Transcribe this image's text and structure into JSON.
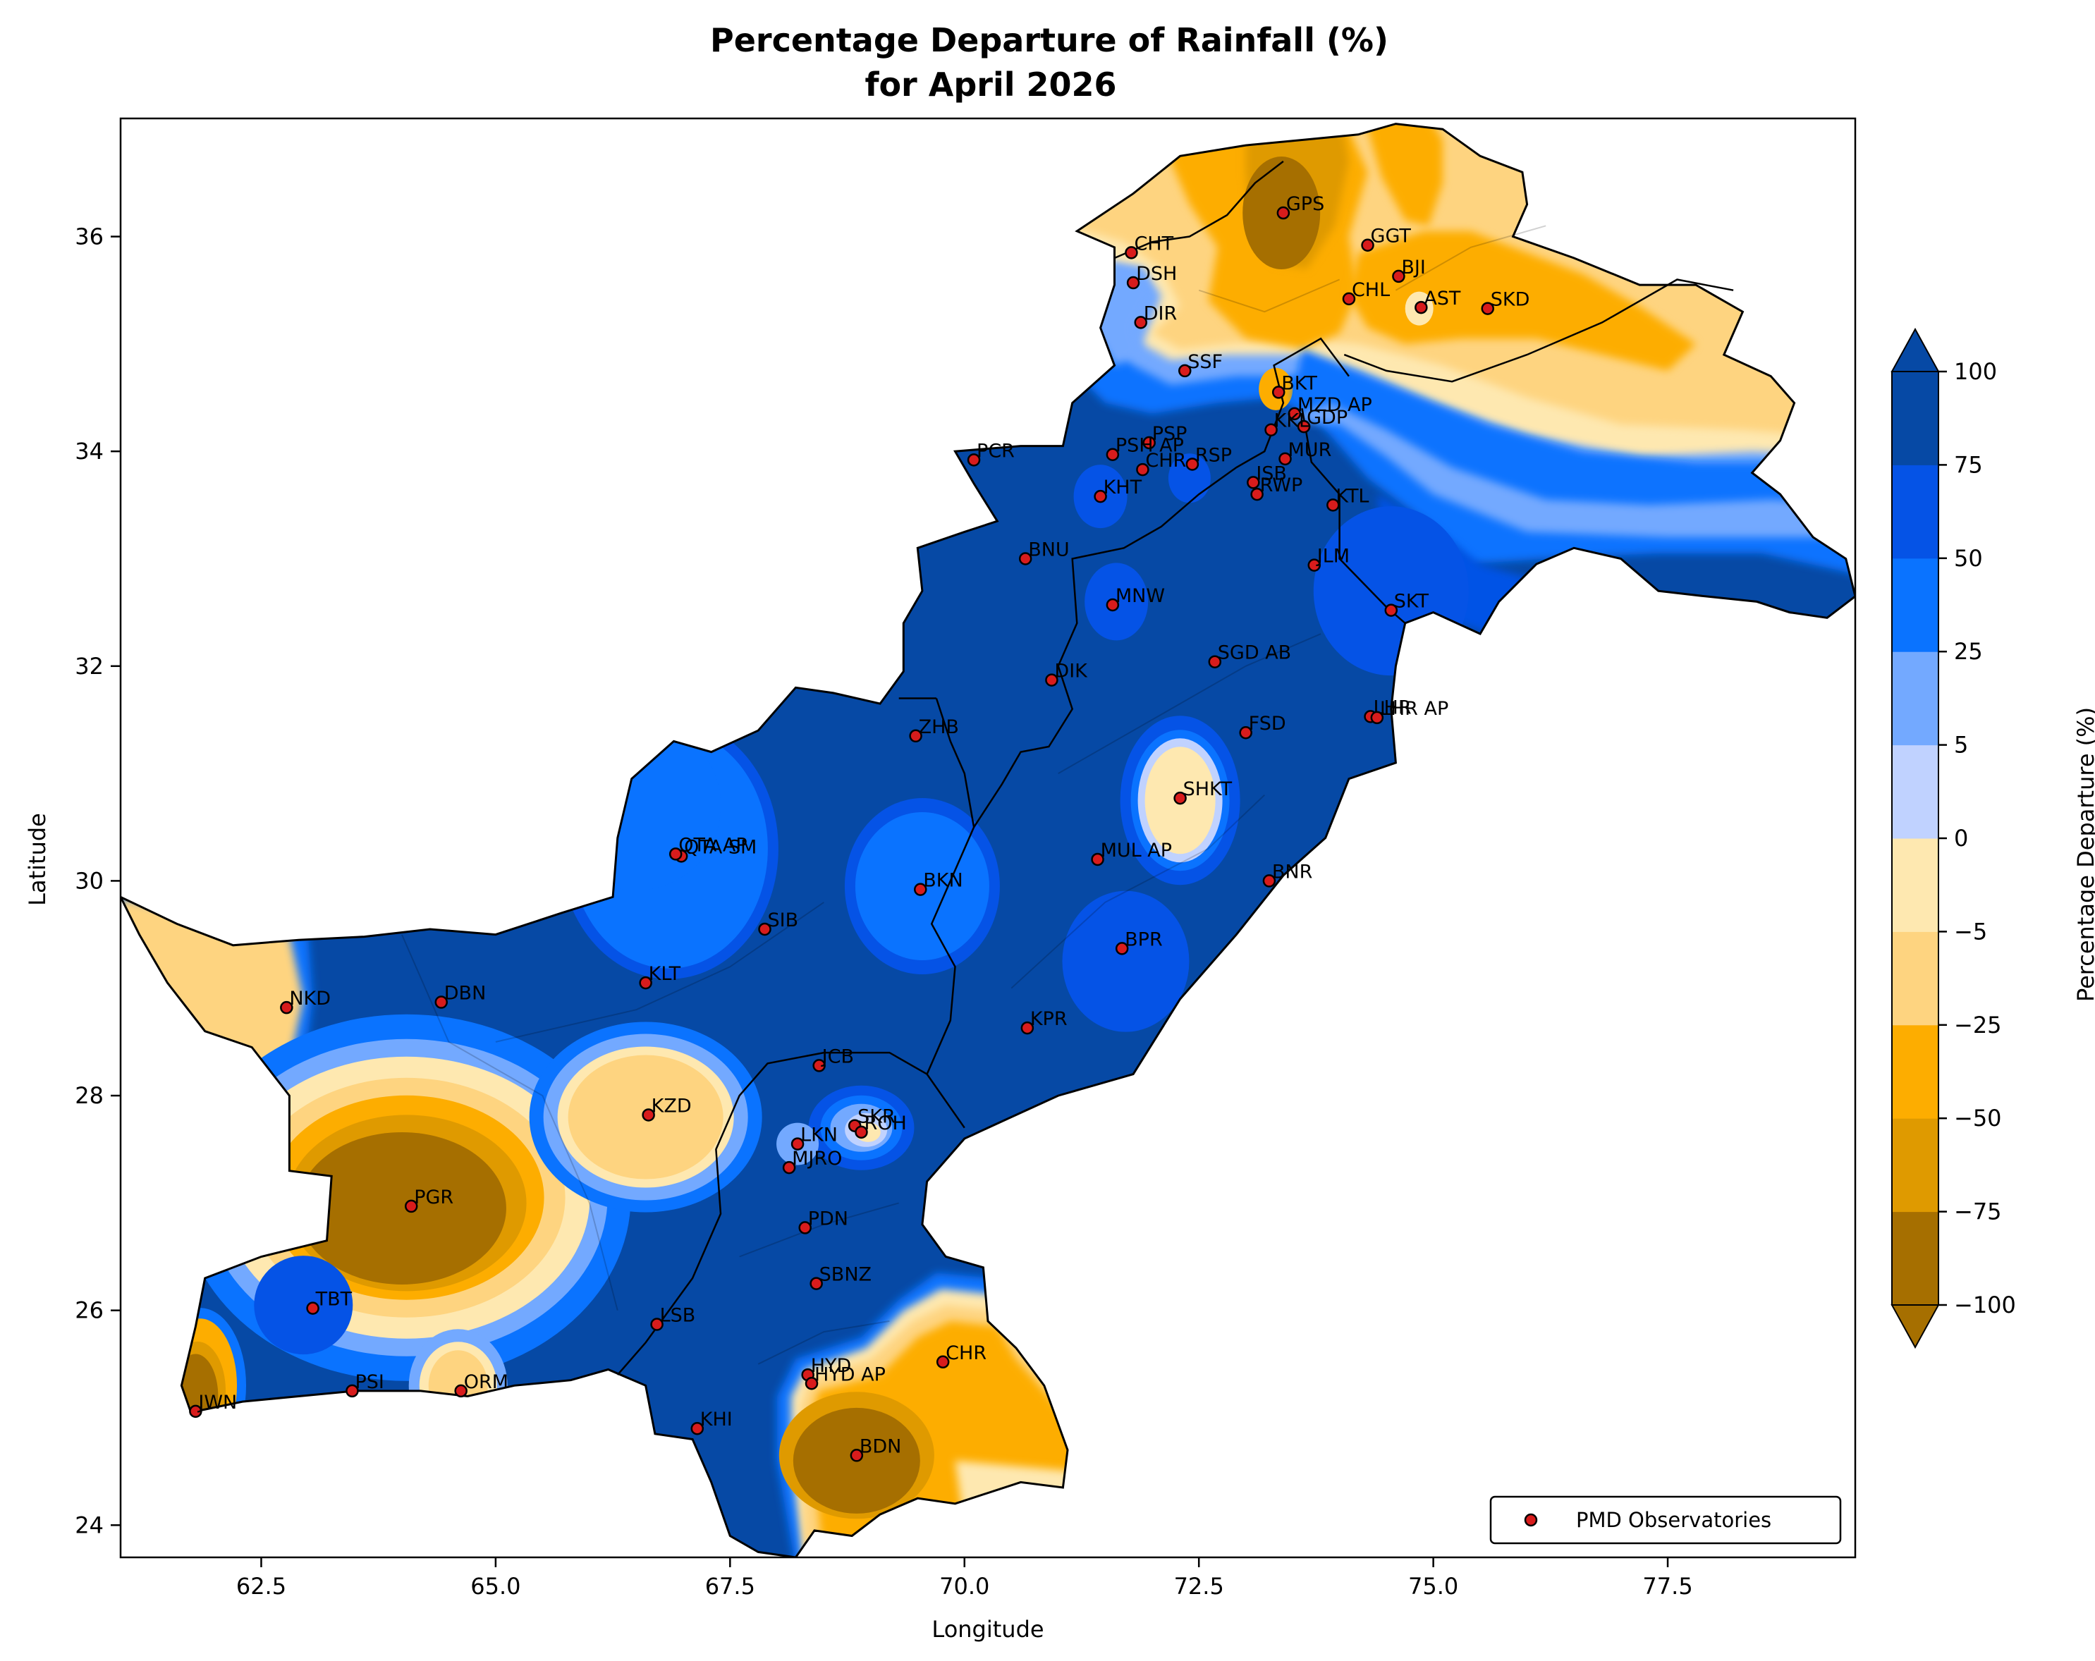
{
  "title_line1": "Percentage Departure of Rainfall (%)",
  "title_line2": "for April 2026",
  "xlabel": "Longitude",
  "ylabel": "Latitude",
  "xlim": [
    61.0,
    79.5
  ],
  "ylim": [
    23.7,
    37.1
  ],
  "xticks": [
    62.5,
    65.0,
    67.5,
    70.0,
    72.5,
    75.0,
    77.5
  ],
  "xtick_labels": [
    "62.5",
    "65.0",
    "67.5",
    "70.0",
    "72.5",
    "75.0",
    "77.5"
  ],
  "yticks": [
    24,
    26,
    28,
    30,
    32,
    34,
    36
  ],
  "ytick_labels": [
    "24",
    "26",
    "28",
    "30",
    "32",
    "34",
    "36"
  ],
  "colorbar": {
    "label": "Percentage Departure (%)",
    "extend": "both",
    "ticks": [
      "100",
      "75",
      "50",
      "25",
      "5",
      "0",
      "−5",
      "−25",
      "−50",
      "−75",
      "−100"
    ],
    "levels_bottom_to_top": [
      {
        "range": "-100 to -75",
        "color": "#a66f00"
      },
      {
        "range": "-75 to -50",
        "color": "#df9a00"
      },
      {
        "range": "-50 to -25",
        "color": "#fdad00"
      },
      {
        "range": "-25 to -5",
        "color": "#fed480"
      },
      {
        "range": "-5 to 0",
        "color": "#fee8b0"
      },
      {
        "range": "0 to 5",
        "color": "#c0d2ff"
      },
      {
        "range": "5 to 25",
        "color": "#73a9ff"
      },
      {
        "range": "25 to 50",
        "color": "#0a73ff"
      },
      {
        "range": "50 to 75",
        "color": "#0553e6"
      },
      {
        "range": "75 to 100",
        "color": "#0649a5"
      }
    ],
    "over_color": "#0649a5",
    "under_color": "#a66f00"
  },
  "legend": {
    "label": "PMD Observatories",
    "placement": "lower right",
    "marker_color": "#d81c1c"
  },
  "stations": [
    {
      "name": "GPS",
      "lon": 73.4,
      "lat": 36.22
    },
    {
      "name": "GGT",
      "lon": 74.3,
      "lat": 35.92
    },
    {
      "name": "CHT",
      "lon": 71.78,
      "lat": 35.85
    },
    {
      "name": "BJI",
      "lon": 74.63,
      "lat": 35.63
    },
    {
      "name": "DSH",
      "lon": 71.8,
      "lat": 35.57
    },
    {
      "name": "CHL",
      "lon": 74.1,
      "lat": 35.42
    },
    {
      "name": "AST",
      "lon": 74.87,
      "lat": 35.34
    },
    {
      "name": "SKD",
      "lon": 75.58,
      "lat": 35.33
    },
    {
      "name": "DIR",
      "lon": 71.88,
      "lat": 35.2
    },
    {
      "name": "SSF",
      "lon": 72.35,
      "lat": 34.75
    },
    {
      "name": "BKT",
      "lon": 73.35,
      "lat": 34.55
    },
    {
      "name": "MZD AP",
      "lon": 73.52,
      "lat": 34.35
    },
    {
      "name": "GDP",
      "lon": 73.62,
      "lat": 34.23
    },
    {
      "name": "KKL",
      "lon": 73.27,
      "lat": 34.2
    },
    {
      "name": "PSP",
      "lon": 71.97,
      "lat": 34.08
    },
    {
      "name": "PSH AP",
      "lon": 71.58,
      "lat": 33.97
    },
    {
      "name": "PCR",
      "lon": 70.1,
      "lat": 33.92
    },
    {
      "name": "MUR",
      "lon": 73.42,
      "lat": 33.93
    },
    {
      "name": "RSP",
      "lon": 72.43,
      "lat": 33.88
    },
    {
      "name": "CHR",
      "lon": 71.9,
      "lat": 33.83
    },
    {
      "name": "ISB",
      "lon": 73.08,
      "lat": 33.71
    },
    {
      "name": "RWP",
      "lon": 73.12,
      "lat": 33.6
    },
    {
      "name": "KHT",
      "lon": 71.45,
      "lat": 33.58
    },
    {
      "name": "KTL",
      "lon": 73.93,
      "lat": 33.5
    },
    {
      "name": "BNU",
      "lon": 70.65,
      "lat": 33.0
    },
    {
      "name": "JLM",
      "lon": 73.73,
      "lat": 32.94
    },
    {
      "name": "MNW",
      "lon": 71.58,
      "lat": 32.57
    },
    {
      "name": "SKT",
      "lon": 74.55,
      "lat": 32.52
    },
    {
      "name": "SGD AB",
      "lon": 72.67,
      "lat": 32.04
    },
    {
      "name": "DIK",
      "lon": 70.93,
      "lat": 31.87
    },
    {
      "name": "LHR",
      "lon": 74.33,
      "lat": 31.53
    },
    {
      "name": "LHR AP",
      "lon": 74.4,
      "lat": 31.52
    },
    {
      "name": "FSD",
      "lon": 73.0,
      "lat": 31.38
    },
    {
      "name": "ZHB",
      "lon": 69.48,
      "lat": 31.35
    },
    {
      "name": "SHKT",
      "lon": 72.3,
      "lat": 30.77
    },
    {
      "name": "QTA SM",
      "lon": 66.98,
      "lat": 30.23
    },
    {
      "name": "QTA AP",
      "lon": 66.92,
      "lat": 30.25
    },
    {
      "name": "MUL AP",
      "lon": 71.42,
      "lat": 30.2
    },
    {
      "name": "BNR",
      "lon": 73.25,
      "lat": 30.0
    },
    {
      "name": "BKN",
      "lon": 69.53,
      "lat": 29.92
    },
    {
      "name": "SIB",
      "lon": 67.87,
      "lat": 29.55
    },
    {
      "name": "BPR",
      "lon": 71.68,
      "lat": 29.37
    },
    {
      "name": "KLT",
      "lon": 66.6,
      "lat": 29.05
    },
    {
      "name": "NKD",
      "lon": 62.77,
      "lat": 28.82
    },
    {
      "name": "DBN",
      "lon": 64.42,
      "lat": 28.87
    },
    {
      "name": "KPR",
      "lon": 70.67,
      "lat": 28.63
    },
    {
      "name": "JCB",
      "lon": 68.45,
      "lat": 28.28
    },
    {
      "name": "KZD",
      "lon": 66.63,
      "lat": 27.82
    },
    {
      "name": "SKR",
      "lon": 68.83,
      "lat": 27.72
    },
    {
      "name": "ROH",
      "lon": 68.9,
      "lat": 27.66
    },
    {
      "name": "LKN",
      "lon": 68.22,
      "lat": 27.55
    },
    {
      "name": "MJRO",
      "lon": 68.13,
      "lat": 27.33
    },
    {
      "name": "PGR",
      "lon": 64.1,
      "lat": 26.97
    },
    {
      "name": "PDN",
      "lon": 68.3,
      "lat": 26.77
    },
    {
      "name": "SBNZ",
      "lon": 68.42,
      "lat": 26.25
    },
    {
      "name": "TBT",
      "lon": 63.05,
      "lat": 26.02
    },
    {
      "name": "LSB",
      "lon": 66.72,
      "lat": 25.87
    },
    {
      "name": "CHR",
      "lon": 69.77,
      "lat": 25.52
    },
    {
      "name": "HYD",
      "lon": 68.33,
      "lat": 25.4
    },
    {
      "name": "HYD AP",
      "lon": 68.37,
      "lat": 25.32
    },
    {
      "name": "PSI",
      "lon": 63.47,
      "lat": 25.25
    },
    {
      "name": "ORM",
      "lon": 64.63,
      "lat": 25.25
    },
    {
      "name": "JWN",
      "lon": 61.8,
      "lat": 25.06
    },
    {
      "name": "KHI",
      "lon": 67.15,
      "lat": 24.9
    },
    {
      "name": "BDN",
      "lon": 68.85,
      "lat": 24.65
    }
  ]
}
